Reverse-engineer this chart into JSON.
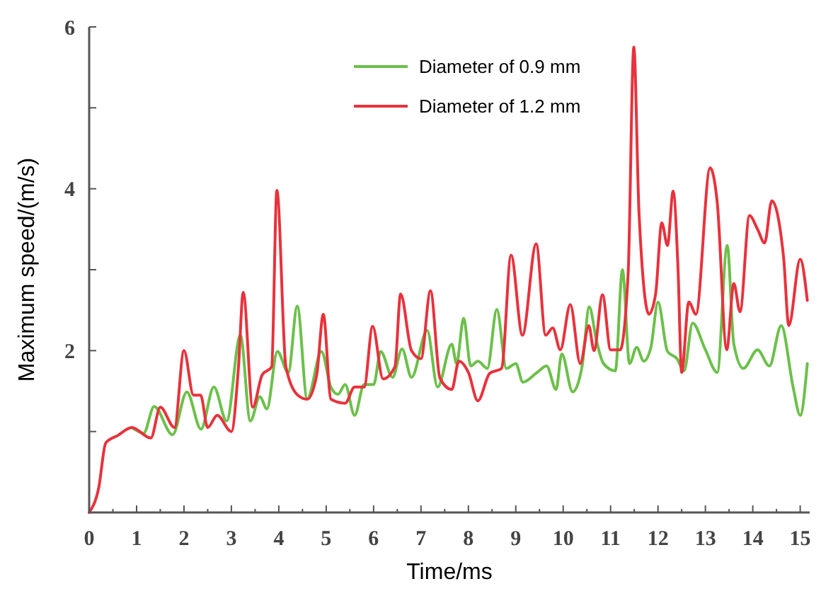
{
  "chart_data": {
    "type": "line",
    "xlabel": "Time/ms",
    "ylabel": "Maximum speed/(m/s)",
    "xlim": [
      0,
      15.2
    ],
    "ylim": [
      0,
      6
    ],
    "xticks": [
      0,
      {
        "value": 0.5,
        "label": null
      },
      1,
      {
        "value": 1.5,
        "label": null
      },
      2,
      {
        "value": 2.5,
        "label": null
      },
      3,
      {
        "value": 3.5,
        "label": null
      },
      4,
      {
        "value": 4.5,
        "label": null
      },
      5,
      {
        "value": 5.5,
        "label": null
      },
      6,
      {
        "value": 6.5,
        "label": null
      },
      7,
      {
        "value": 7.5,
        "label": null
      },
      8,
      {
        "value": 8.5,
        "label": null
      },
      9,
      {
        "value": 9.5,
        "label": null
      },
      10,
      {
        "value": 10.5,
        "label": null
      },
      11,
      {
        "value": 11.5,
        "label": null
      },
      12,
      {
        "value": 12.5,
        "label": null
      },
      13,
      {
        "value": 13.5,
        "label": null
      },
      14,
      {
        "value": 14.5,
        "label": null
      },
      15
    ],
    "yticks": [
      {
        "value": 1,
        "label": null
      },
      2,
      {
        "value": 3,
        "label": null
      },
      4,
      {
        "value": 5,
        "label": null
      },
      6
    ],
    "grid": false,
    "legend": "top right",
    "marker": "none",
    "line_style": "solid",
    "series": [
      {
        "name": "Diameter of 0.9 mm",
        "color": "#6cc04a",
        "x": [
          0.9,
          1.15,
          1.37,
          1.76,
          2.06,
          2.36,
          2.63,
          2.9,
          3.19,
          3.4,
          3.6,
          3.75,
          3.97,
          4.2,
          4.39,
          4.6,
          4.9,
          5.1,
          5.25,
          5.4,
          5.6,
          5.8,
          6.0,
          6.15,
          6.4,
          6.6,
          6.8,
          7.13,
          7.35,
          7.65,
          7.75,
          7.9,
          8.05,
          8.2,
          8.4,
          8.6,
          8.8,
          9.0,
          9.15,
          9.45,
          9.65,
          9.85,
          9.97,
          10.2,
          10.4,
          10.55,
          10.7,
          10.85,
          11.1,
          11.25,
          11.4,
          11.55,
          11.7,
          11.85,
          12.0,
          12.2,
          12.4,
          12.55,
          12.73,
          13.0,
          13.25,
          13.46,
          13.6,
          13.8,
          14.1,
          14.35,
          14.6,
          14.85,
          15.0,
          15.15
        ],
        "values": [
          1.05,
          0.98,
          1.31,
          0.96,
          1.49,
          1.03,
          1.55,
          1.13,
          2.19,
          1.13,
          1.43,
          1.28,
          1.99,
          1.73,
          2.55,
          1.4,
          1.99,
          1.55,
          1.46,
          1.58,
          1.2,
          1.58,
          1.58,
          1.99,
          1.67,
          2.02,
          1.67,
          2.25,
          1.55,
          2.08,
          1.84,
          2.4,
          1.81,
          1.87,
          1.78,
          2.51,
          1.78,
          1.84,
          1.61,
          1.73,
          1.81,
          1.52,
          1.96,
          1.49,
          1.81,
          2.54,
          2.13,
          1.84,
          1.75,
          3.0,
          1.84,
          2.04,
          1.87,
          2.04,
          2.6,
          1.99,
          1.9,
          1.75,
          2.34,
          2.01,
          1.73,
          3.3,
          2.08,
          1.78,
          2.01,
          1.81,
          2.31,
          1.55,
          1.2,
          1.84
        ]
      },
      {
        "name": "Diameter of 1.2 mm",
        "color": "#e8323c",
        "x": [
          0,
          0.2,
          0.35,
          0.6,
          0.9,
          1.3,
          1.5,
          1.8,
          2.0,
          2.2,
          2.35,
          2.5,
          2.7,
          3.0,
          3.15,
          3.25,
          3.45,
          3.65,
          3.85,
          3.96,
          4.15,
          4.4,
          4.6,
          4.8,
          4.94,
          5.1,
          5.4,
          5.6,
          5.8,
          5.98,
          6.2,
          6.45,
          6.57,
          6.8,
          7.0,
          7.2,
          7.4,
          7.65,
          7.8,
          8.0,
          8.2,
          8.45,
          8.7,
          8.9,
          9.14,
          9.43,
          9.63,
          9.78,
          9.94,
          10.15,
          10.36,
          10.54,
          10.65,
          10.83,
          11.0,
          11.2,
          11.37,
          11.49,
          11.6,
          11.81,
          11.95,
          12.08,
          12.2,
          12.32,
          12.42,
          12.5,
          12.65,
          12.8,
          13.1,
          13.25,
          13.45,
          13.6,
          13.73,
          13.93,
          14.1,
          14.25,
          14.4,
          14.65,
          14.76,
          15.0,
          15.15
        ],
        "values": [
          0,
          0.3,
          0.86,
          0.95,
          1.05,
          0.92,
          1.3,
          1.05,
          2.0,
          1.45,
          1.45,
          1.05,
          1.2,
          1.0,
          1.8,
          2.72,
          1.3,
          1.7,
          1.8,
          3.98,
          1.8,
          1.45,
          1.4,
          1.7,
          2.45,
          1.4,
          1.35,
          1.55,
          1.55,
          2.3,
          1.65,
          1.8,
          2.7,
          2.0,
          1.9,
          2.74,
          1.66,
          1.52,
          1.87,
          1.73,
          1.38,
          1.72,
          1.78,
          3.18,
          2.19,
          3.32,
          2.19,
          2.28,
          2.01,
          2.57,
          1.84,
          2.31,
          2.0,
          2.69,
          2.01,
          2.01,
          2.95,
          5.75,
          3.7,
          2.45,
          2.7,
          3.58,
          3.3,
          3.97,
          3.05,
          1.73,
          2.6,
          2.45,
          4.26,
          3.83,
          2.01,
          2.83,
          2.48,
          3.67,
          3.5,
          3.33,
          3.85,
          3.15,
          2.31,
          3.13,
          2.62
        ]
      }
    ]
  }
}
